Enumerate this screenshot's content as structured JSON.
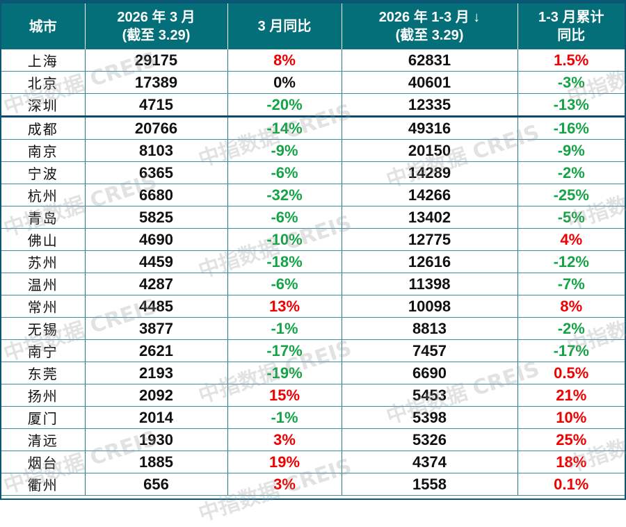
{
  "table": {
    "headers": [
      {
        "line1": "城市",
        "line2": ""
      },
      {
        "line1": "2026 年 3 月",
        "line2": "(截至 3.29)"
      },
      {
        "line1": "3 月同比",
        "line2": ""
      },
      {
        "line1": "2026 年 1-3 月  ↓",
        "line2": "(截至 3.29)"
      },
      {
        "line1": "1-3 月累计",
        "line2": "同比"
      }
    ],
    "rows": [
      {
        "city": "上海",
        "march": "29175",
        "march_yoy": "8%",
        "march_yoy_sign": "pos",
        "q1": "62831",
        "q1_yoy": "1.5%",
        "q1_yoy_sign": "pos"
      },
      {
        "city": "北京",
        "march": "17389",
        "march_yoy": "0%",
        "march_yoy_sign": "zero",
        "q1": "40601",
        "q1_yoy": "-3%",
        "q1_yoy_sign": "neg"
      },
      {
        "city": "深圳",
        "march": "4715",
        "march_yoy": "-20%",
        "march_yoy_sign": "neg",
        "q1": "12335",
        "q1_yoy": "-13%",
        "q1_yoy_sign": "neg"
      },
      {
        "city": "成都",
        "march": "20766",
        "march_yoy": "-14%",
        "march_yoy_sign": "neg",
        "q1": "49316",
        "q1_yoy": "-16%",
        "q1_yoy_sign": "neg"
      },
      {
        "city": "南京",
        "march": "8103",
        "march_yoy": "-9%",
        "march_yoy_sign": "neg",
        "q1": "20150",
        "q1_yoy": "-9%",
        "q1_yoy_sign": "neg"
      },
      {
        "city": "宁波",
        "march": "6365",
        "march_yoy": "-6%",
        "march_yoy_sign": "neg",
        "q1": "14289",
        "q1_yoy": "-2%",
        "q1_yoy_sign": "neg"
      },
      {
        "city": "杭州",
        "march": "6680",
        "march_yoy": "-32%",
        "march_yoy_sign": "neg",
        "q1": "14266",
        "q1_yoy": "-25%",
        "q1_yoy_sign": "neg"
      },
      {
        "city": "青岛",
        "march": "5825",
        "march_yoy": "-6%",
        "march_yoy_sign": "neg",
        "q1": "13402",
        "q1_yoy": "-5%",
        "q1_yoy_sign": "neg"
      },
      {
        "city": "佛山",
        "march": "4690",
        "march_yoy": "-10%",
        "march_yoy_sign": "neg",
        "q1": "12775",
        "q1_yoy": "4%",
        "q1_yoy_sign": "pos"
      },
      {
        "city": "苏州",
        "march": "4459",
        "march_yoy": "-18%",
        "march_yoy_sign": "neg",
        "q1": "12616",
        "q1_yoy": "-12%",
        "q1_yoy_sign": "neg"
      },
      {
        "city": "温州",
        "march": "4287",
        "march_yoy": "-6%",
        "march_yoy_sign": "neg",
        "q1": "11398",
        "q1_yoy": "-7%",
        "q1_yoy_sign": "neg"
      },
      {
        "city": "常州",
        "march": "4485",
        "march_yoy": "13%",
        "march_yoy_sign": "pos",
        "q1": "10098",
        "q1_yoy": "8%",
        "q1_yoy_sign": "pos"
      },
      {
        "city": "无锡",
        "march": "3877",
        "march_yoy": "-1%",
        "march_yoy_sign": "neg",
        "q1": "8813",
        "q1_yoy": "-2%",
        "q1_yoy_sign": "neg"
      },
      {
        "city": "南宁",
        "march": "2621",
        "march_yoy": "-17%",
        "march_yoy_sign": "neg",
        "q1": "7457",
        "q1_yoy": "-17%",
        "q1_yoy_sign": "neg"
      },
      {
        "city": "东莞",
        "march": "2193",
        "march_yoy": "-19%",
        "march_yoy_sign": "neg",
        "q1": "6690",
        "q1_yoy": "0.5%",
        "q1_yoy_sign": "pos"
      },
      {
        "city": "扬州",
        "march": "2092",
        "march_yoy": "15%",
        "march_yoy_sign": "pos",
        "q1": "5453",
        "q1_yoy": "21%",
        "q1_yoy_sign": "pos"
      },
      {
        "city": "厦门",
        "march": "2014",
        "march_yoy": "-1%",
        "march_yoy_sign": "neg",
        "q1": "5398",
        "q1_yoy": "10%",
        "q1_yoy_sign": "pos"
      },
      {
        "city": "清远",
        "march": "1930",
        "march_yoy": "3%",
        "march_yoy_sign": "pos",
        "q1": "5326",
        "q1_yoy": "25%",
        "q1_yoy_sign": "pos"
      },
      {
        "city": "烟台",
        "march": "1885",
        "march_yoy": "19%",
        "march_yoy_sign": "pos",
        "q1": "4374",
        "q1_yoy": "18%",
        "q1_yoy_sign": "pos"
      },
      {
        "city": "衢州",
        "march": "656",
        "march_yoy": "3%",
        "march_yoy_sign": "pos",
        "q1": "1558",
        "q1_yoy": "0.1%",
        "q1_yoy_sign": "pos"
      }
    ],
    "group_break_after_index": 2
  },
  "watermark": {
    "cn": "中指数据",
    "en": "CREIS"
  },
  "colors": {
    "header_bg": "#046f78",
    "border_dark": "#0b5575",
    "positive": "#ee0000",
    "negative": "#16a347"
  }
}
